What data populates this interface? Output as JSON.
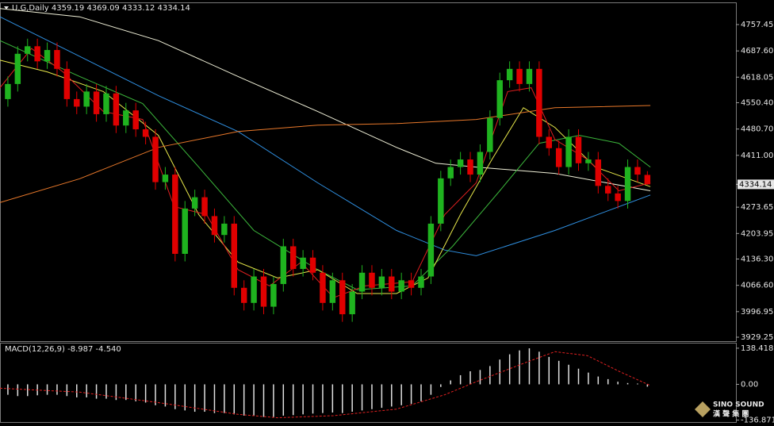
{
  "chart_data": [
    {
      "type": "candlestick",
      "title": "U.G,Daily  4359.19 4369.09 4333.12 4334.14",
      "xlim": [
        -0.8,
        74
      ],
      "ylim": [
        3918.8,
        4814.1
      ],
      "yticks": [
        4757.45,
        {
          "value": 4687.6,
          "label": "4687.60"
        },
        4618.05,
        {
          "value": 4550.4,
          "label": "4550.40"
        },
        {
          "value": 4480.7,
          "label": "4480.70"
        },
        {
          "value": 4411,
          "label": "4411.00"
        },
        4273.65,
        4203.95,
        {
          "value": 4136.3,
          "label": "4136.30"
        },
        {
          "value": 4066.6,
          "label": "4066.60"
        },
        3996.95,
        3929.25
      ],
      "up_color": "#1fb31f",
      "down_color": "#e00000",
      "open": [
        4560,
        4600,
        4680,
        4700,
        4660,
        4690,
        4640,
        4560,
        4540,
        4580,
        4520,
        4575,
        4490,
        4530,
        4480,
        4460,
        4340,
        4360,
        4150,
        4270,
        4300,
        4250,
        4200,
        4230,
        4060,
        4020,
        4090,
        4010,
        4070,
        4170,
        4110,
        4140,
        4100,
        4020,
        4080,
        3990,
        4050,
        4100,
        4060,
        4090,
        4050,
        4080,
        4060,
        4090,
        4230,
        4350,
        4380,
        4400,
        4360,
        4420,
        4510,
        4610,
        4640,
        4600,
        4640,
        4460,
        4430,
        4380,
        4460,
        4390,
        4400,
        4330,
        4310,
        4290,
        4380,
        4359.19
      ],
      "high": [
        4620,
        4700,
        4720,
        4720,
        4710,
        4710,
        4660,
        4580,
        4600,
        4600,
        4595,
        4595,
        4550,
        4550,
        4500,
        4480,
        4380,
        4380,
        4290,
        4320,
        4320,
        4270,
        4250,
        4250,
        4080,
        4110,
        4110,
        4090,
        4190,
        4190,
        4160,
        4160,
        4120,
        4100,
        4100,
        4070,
        4120,
        4120,
        4110,
        4110,
        4100,
        4100,
        4110,
        4250,
        4370,
        4400,
        4420,
        4420,
        4440,
        4530,
        4630,
        4660,
        4660,
        4660,
        4660,
        4480,
        4450,
        4480,
        4480,
        4420,
        4420,
        4350,
        4330,
        4400,
        4400,
        4369.09
      ],
      "low": [
        4540,
        4580,
        4660,
        4640,
        4640,
        4620,
        4540,
        4520,
        4520,
        4500,
        4500,
        4470,
        4470,
        4460,
        4440,
        4320,
        4320,
        4130,
        4130,
        4250,
        4230,
        4180,
        4180,
        4040,
        4000,
        4000,
        3990,
        3990,
        4050,
        4090,
        4090,
        4080,
        4000,
        4000,
        3970,
        3970,
        4030,
        4040,
        4040,
        4030,
        4030,
        4040,
        4040,
        4070,
        4210,
        4330,
        4360,
        4340,
        4340,
        4400,
        4490,
        4590,
        4580,
        4580,
        4440,
        4410,
        4360,
        4360,
        4370,
        4370,
        4310,
        4290,
        4270,
        4270,
        4340,
        4333.12
      ],
      "close": [
        4600,
        4680,
        4700,
        4660,
        4690,
        4640,
        4560,
        4540,
        4580,
        4520,
        4575,
        4490,
        4530,
        4480,
        4460,
        4340,
        4360,
        4150,
        4270,
        4300,
        4250,
        4200,
        4230,
        4060,
        4020,
        4090,
        4010,
        4070,
        4170,
        4110,
        4140,
        4100,
        4020,
        4080,
        3990,
        4050,
        4100,
        4060,
        4090,
        4050,
        4080,
        4060,
        4090,
        4230,
        4350,
        4380,
        4400,
        4360,
        4420,
        4510,
        4610,
        4640,
        4600,
        4640,
        4460,
        4430,
        4380,
        4460,
        4390,
        4400,
        4330,
        4310,
        4290,
        4380,
        4360,
        4334.14
      ],
      "lines": [
        {
          "color": "#f0f0d8",
          "x": [
            -0.8,
            7.3,
            15.3,
            23.4,
            31.5,
            39.5,
            43.5,
            47.6,
            55.6,
            65.3
          ],
          "values": [
            4800,
            4778,
            4715,
            4620,
            4527,
            4432,
            4390,
            4380,
            4363,
            4317
          ]
        },
        {
          "color": "#2f8fe0",
          "x": [
            -0.8,
            7.3,
            15.3,
            23.4,
            31.5,
            39.5,
            44.4,
            47.6,
            55.6,
            65.3
          ],
          "values": [
            4778,
            4673,
            4569,
            4474,
            4338,
            4212,
            4160,
            4145,
            4212,
            4306
          ]
        },
        {
          "color": "#3cb83c",
          "x": [
            -0.8,
            7.3,
            13.7,
            19.4,
            25,
            31.5,
            35.5,
            41.1,
            45.2,
            50,
            54,
            58.1,
            62.1,
            65.3
          ],
          "values": [
            4715,
            4620,
            4548,
            4380,
            4212,
            4108,
            4055,
            4065,
            4170,
            4317,
            4443,
            4464,
            4443,
            4380
          ]
        },
        {
          "color": "#e8e84a",
          "x": [
            -0.8,
            4,
            9.7,
            15.3,
            19.4,
            23.4,
            27.4,
            31.5,
            35.5,
            39.5,
            42.7,
            46,
            49.2,
            52.4,
            55.6,
            59.7,
            65.3
          ],
          "values": [
            4663,
            4632,
            4580,
            4464,
            4254,
            4128,
            4086,
            4108,
            4045,
            4045,
            4086,
            4254,
            4400,
            4537,
            4485,
            4380,
            4328
          ]
        },
        {
          "color": "#e02020",
          "x": [
            -0.8,
            2.4,
            5.6,
            9.7,
            13.7,
            16.9,
            20.2,
            23.4,
            26.6,
            29.8,
            33.1,
            36.3,
            41.1,
            44.4,
            47.6,
            50.8,
            53.2,
            55.6,
            58.9,
            62.1,
            65.3
          ],
          "values": [
            4590,
            4694,
            4632,
            4527,
            4506,
            4275,
            4254,
            4108,
            4065,
            4128,
            4034,
            4065,
            4076,
            4254,
            4338,
            4580,
            4590,
            4453,
            4400,
            4317,
            4338
          ]
        },
        {
          "color": "#e8782a",
          "x": [
            -0.8,
            7.3,
            15.3,
            23.4,
            31.5,
            39.5,
            47.6,
            55.6,
            65.3
          ],
          "values": [
            4286,
            4349,
            4432,
            4474,
            4491,
            4495,
            4506,
            4537,
            4543
          ]
        }
      ],
      "last_price": 4334.14,
      "watermark": [
        "SINO SOUND",
        "漢 聲 集 團"
      ]
    },
    {
      "type": "macd",
      "title": "MACD(12,26,9) -8.987 -4.540",
      "xlim": [
        -0.8,
        74
      ],
      "ylim": [
        -144.4,
        156.4
      ],
      "yticks": [
        138.418,
        {
          "value": 0,
          "label": "0.00"
        },
        -136.871
      ],
      "color": "#e0e0e0",
      "values": [
        -40,
        -45,
        -45,
        -42,
        -40,
        -40,
        -45,
        -50,
        -50,
        -55,
        -55,
        -60,
        -60,
        -65,
        -70,
        -80,
        -85,
        -95,
        -100,
        -105,
        -105,
        -110,
        -110,
        -115,
        -120,
        -120,
        -125,
        -125,
        -120,
        -118,
        -115,
        -112,
        -110,
        -108,
        -110,
        -105,
        -100,
        -95,
        -90,
        -85,
        -80,
        -75,
        -65,
        -40,
        -10,
        15,
        35,
        50,
        55,
        70,
        95,
        115,
        130,
        138,
        125,
        105,
        90,
        75,
        60,
        45,
        30,
        20,
        10,
        5,
        3,
        -8.987
      ],
      "signal": {
        "color": "#e02020",
        "x": [
          -0.8,
          7.3,
          15.3,
          23.4,
          27.4,
          33.1,
          39.5,
          44.4,
          47.6,
          52.4,
          55.6,
          58.9,
          62.1,
          65.3
        ],
        "values": [
          -15,
          -30,
          -70,
          -115,
          -128,
          -120,
          -95,
          -40,
          10,
          80,
          125,
          110,
          50,
          -4.54
        ]
      }
    }
  ]
}
